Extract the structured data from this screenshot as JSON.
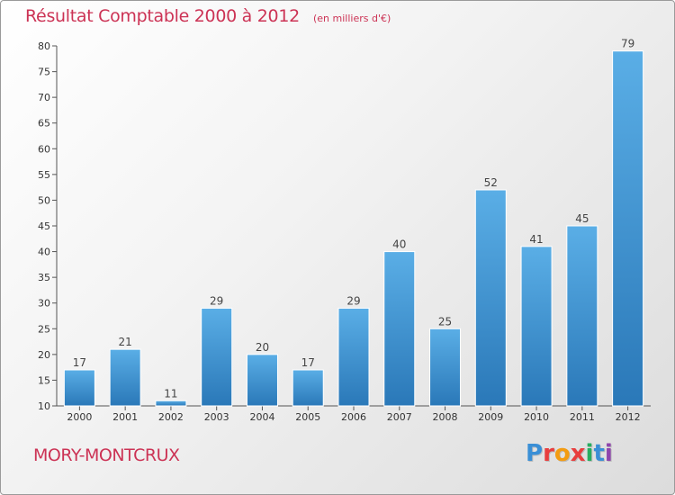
{
  "header": {
    "title": "Résultat Comptable 2000 à 2012",
    "unit": "(en milliers d'€)"
  },
  "footer": {
    "commune": "MORY-MONTCRUX",
    "brand": "Proxiti"
  },
  "colors": {
    "accent": "#cc3355",
    "bar_top": "#5aaee6",
    "bar_bottom": "#2a78b8",
    "brand_letters": [
      "#3a8fd6",
      "#e83e3e",
      "#f39c12",
      "#e83e3e",
      "#27ae60",
      "#3a8fd6",
      "#8e44ad"
    ]
  },
  "chart_data": {
    "type": "bar",
    "title": "Résultat Comptable 2000 à 2012",
    "subtitle": "(en milliers d'€)",
    "xlabel": "",
    "ylabel": "",
    "categories": [
      "2000",
      "2001",
      "2002",
      "2003",
      "2004",
      "2005",
      "2006",
      "2007",
      "2008",
      "2009",
      "2010",
      "2011",
      "2012"
    ],
    "values": [
      17,
      21,
      11,
      29,
      20,
      17,
      29,
      40,
      25,
      52,
      41,
      45,
      79
    ],
    "ylim": [
      10,
      80
    ],
    "yticks": [
      10,
      15,
      20,
      25,
      30,
      35,
      40,
      45,
      50,
      55,
      60,
      65,
      70,
      75,
      80
    ],
    "grid": false,
    "data_labels": true
  }
}
